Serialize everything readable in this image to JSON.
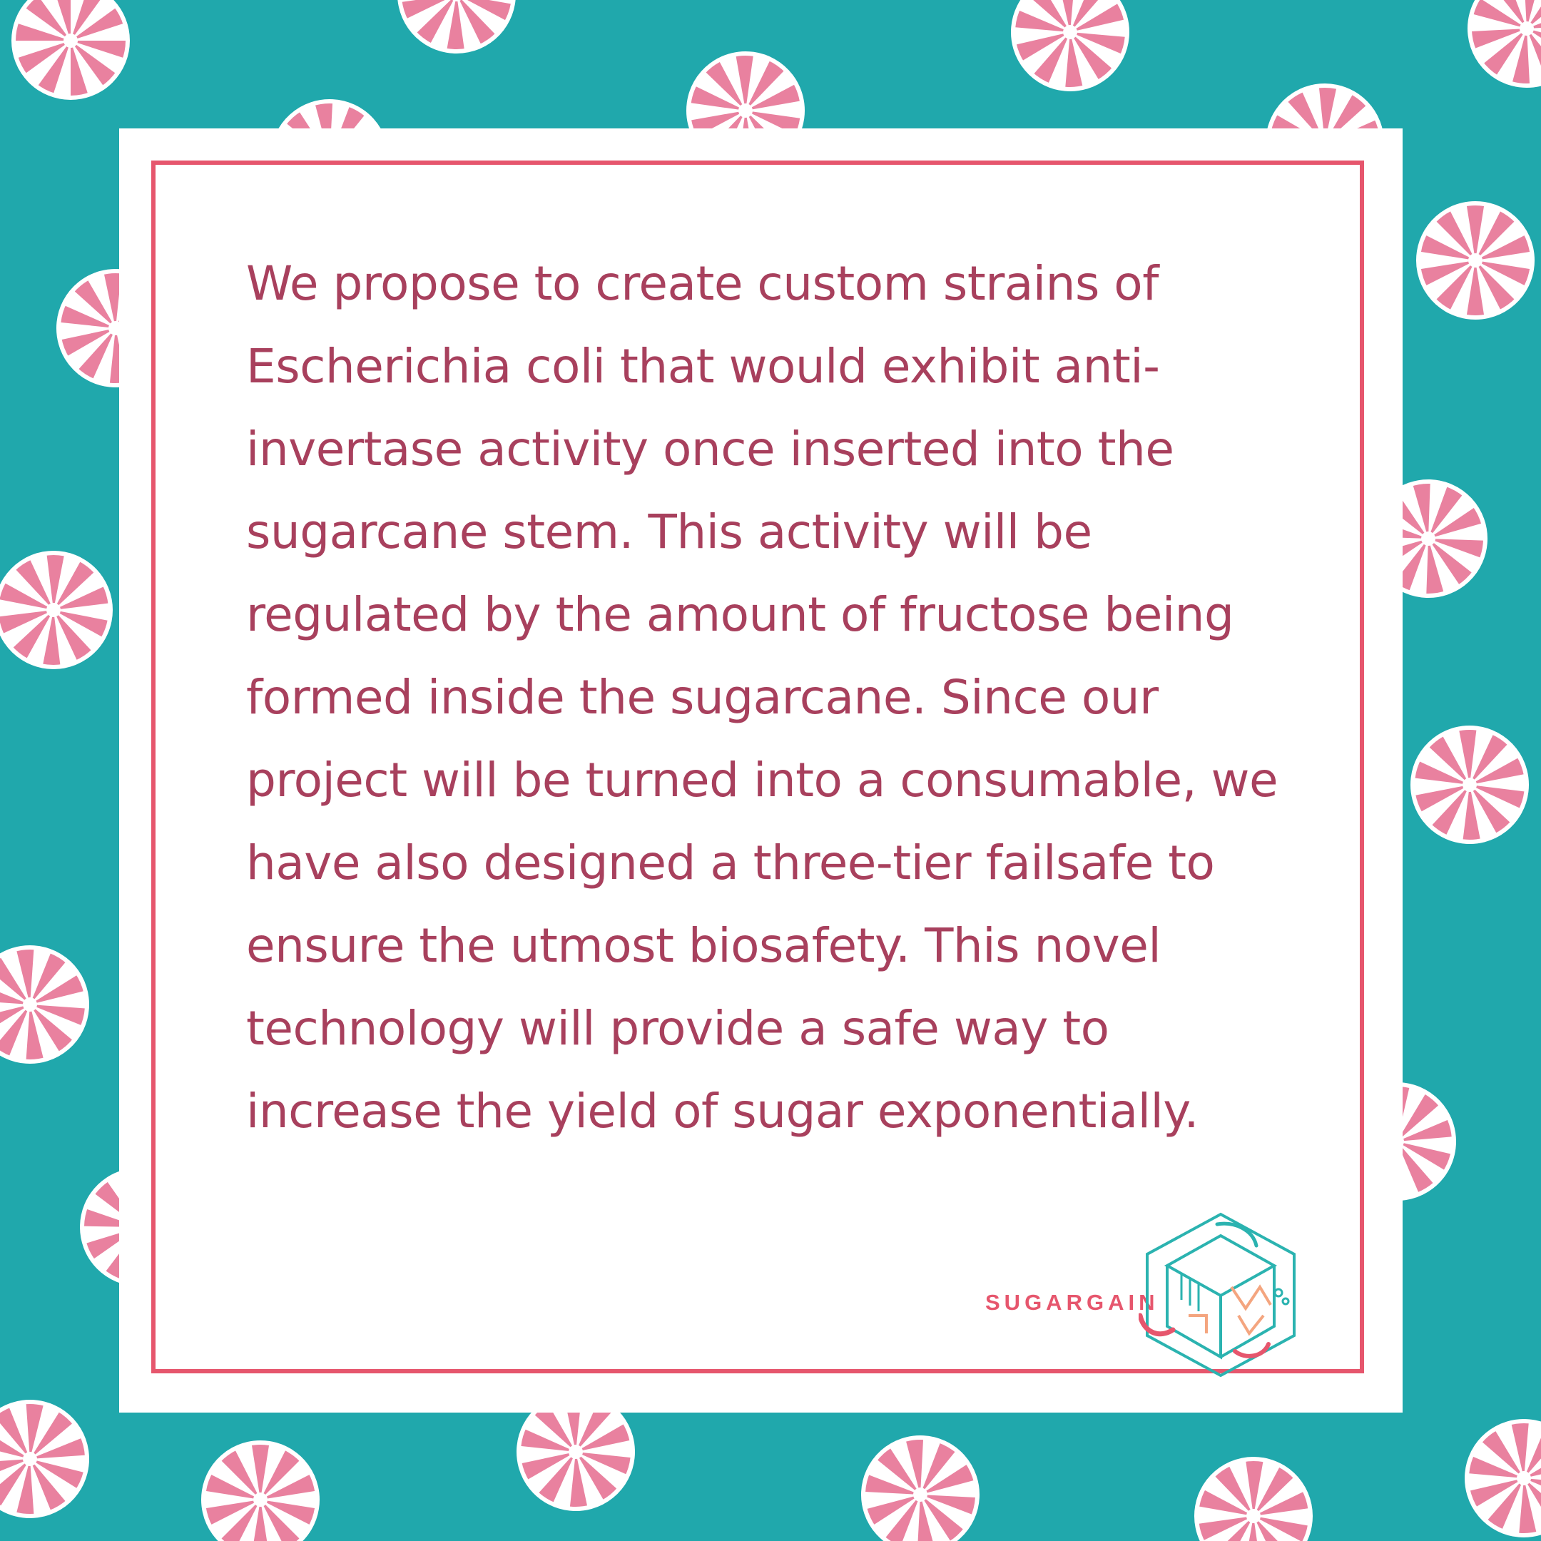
{
  "colors": {
    "background": "#20a8ac",
    "card": "#ffffff",
    "frame": "#e6566d",
    "text": "#a8405d",
    "candy_stripe": "#e9819f",
    "logo_teal": "#2bb3b0",
    "logo_peach": "#f4a57f",
    "logo_pink": "#e6566d"
  },
  "icons": {
    "candy": "peppermint-candy-icon",
    "logo": "hexagon-cube-logo-icon"
  },
  "body": {
    "paragraph": "We propose to create custom strains of Escherichia coli that would exhibit anti-invertase activity once inserted into the sugarcane stem. This activity will be regulated by the amount of fructose being formed inside the sugarcane. Since our project will be turned into a consumable, we have also designed a three-tier failsafe to ensure the utmost biosafety. This novel technology will provide a safe way to increase the yield of sugar exponentially."
  },
  "brand": {
    "name": "SUGARGAIN"
  }
}
